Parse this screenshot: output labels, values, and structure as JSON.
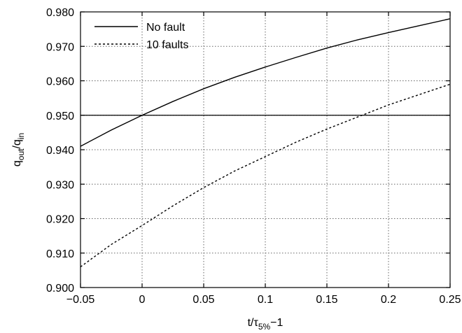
{
  "chart_data": {
    "type": "line",
    "xlabel": {
      "base": "t/τ",
      "sub": "5%",
      "suffix": "−1"
    },
    "ylabel": {
      "q1": "q",
      "sub1": "out",
      "slash": "/",
      "q2": "q",
      "sub2": "in"
    },
    "xlim": [
      -0.05,
      0.25
    ],
    "ylim": [
      0.9,
      0.98
    ],
    "xticks": [
      -0.05,
      0,
      0.05,
      0.1,
      0.15,
      0.2,
      0.25
    ],
    "xtick_labels": [
      "−0.05",
      "0",
      "0.05",
      "0.1",
      "0.15",
      "0.2",
      "0.25"
    ],
    "yticks": [
      0.9,
      0.91,
      0.92,
      0.93,
      0.94,
      0.95,
      0.96,
      0.97,
      0.98
    ],
    "ytick_labels": [
      "0.900",
      "0.910",
      "0.920",
      "0.930",
      "0.940",
      "0.950",
      "0.960",
      "0.970",
      "0.980"
    ],
    "grid": true,
    "reference_line_y": 0.95,
    "legend_position": "top-left",
    "series": [
      {
        "name": "No fault",
        "style": "solid",
        "x": [
          -0.05,
          -0.025,
          0,
          0.025,
          0.05,
          0.075,
          0.1,
          0.125,
          0.15,
          0.175,
          0.2,
          0.225,
          0.25
        ],
        "y": [
          0.941,
          0.9457,
          0.95,
          0.954,
          0.9577,
          0.961,
          0.964,
          0.9668,
          0.9695,
          0.9719,
          0.974,
          0.976,
          0.978
        ]
      },
      {
        "name": "10 faults",
        "style": "dashed",
        "x": [
          -0.05,
          -0.025,
          0,
          0.025,
          0.05,
          0.075,
          0.1,
          0.125,
          0.15,
          0.175,
          0.2,
          0.225,
          0.25
        ],
        "y": [
          0.906,
          0.9125,
          0.918,
          0.9237,
          0.929,
          0.9338,
          0.938,
          0.9422,
          0.946,
          0.9495,
          0.953,
          0.956,
          0.959
        ]
      }
    ]
  }
}
